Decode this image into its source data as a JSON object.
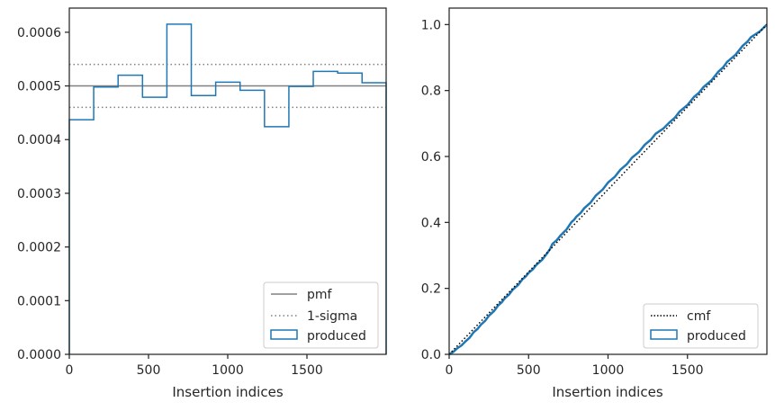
{
  "chart_data": [
    {
      "type": "histogram",
      "xlabel": "Insertion indices",
      "ylabel": "",
      "xlim": [
        0,
        2000
      ],
      "ylim": [
        0,
        0.000645
      ],
      "xticks": [
        0,
        500,
        1000,
        1500
      ],
      "xtick_labels": [
        "0",
        "500",
        "1000",
        "1500"
      ],
      "yticks": [
        0,
        0.0001,
        0.0002,
        0.0003,
        0.0004,
        0.0005,
        0.0006
      ],
      "ytick_labels": [
        "0.0000",
        "0.0001",
        "0.0002",
        "0.0003",
        "0.0004",
        "0.0005",
        "0.0006"
      ],
      "bin_edges": [
        0,
        154,
        308,
        462,
        616,
        770,
        924,
        1078,
        1232,
        1386,
        1540,
        1694,
        1848,
        2000
      ],
      "produced": [
        0.000437,
        0.000498,
        0.00052,
        0.000479,
        0.000615,
        0.000482,
        0.000507,
        0.000492,
        0.000424,
        0.000499,
        0.000527,
        0.000524,
        0.000506
      ],
      "pmf": 0.0005,
      "sigma_lower": 0.00046,
      "sigma_upper": 0.00054,
      "legend_position": "lower right",
      "legend": [
        {
          "label": "pmf",
          "style": "solid",
          "color": "#808080"
        },
        {
          "label": "1-sigma",
          "style": "dotted",
          "color": "#808080"
        },
        {
          "label": "produced",
          "style": "step",
          "color": "#1f77b4"
        }
      ]
    },
    {
      "type": "line",
      "xlabel": "Insertion indices",
      "ylabel": "",
      "xlim": [
        0,
        2000
      ],
      "ylim": [
        0,
        1.05
      ],
      "xticks": [
        0,
        500,
        1000,
        1500
      ],
      "xtick_labels": [
        "0",
        "500",
        "1000",
        "1500"
      ],
      "yticks": [
        0,
        0.2,
        0.4,
        0.6,
        0.8,
        1.0
      ],
      "ytick_labels": [
        "0.0",
        "0.2",
        "0.4",
        "0.6",
        "0.8",
        "1.0"
      ],
      "cmf": {
        "x": [
          0,
          2000
        ],
        "y": [
          0,
          1.0
        ]
      },
      "produced": {
        "x": [
          0,
          50,
          100,
          154,
          200,
          250,
          308,
          350,
          400,
          462,
          500,
          550,
          616,
          650,
          700,
          770,
          800,
          850,
          924,
          1000,
          1078,
          1150,
          1232,
          1300,
          1386,
          1450,
          1540,
          1600,
          1694,
          1750,
          1848,
          1900,
          2000
        ],
        "y": [
          0,
          0.018,
          0.038,
          0.067,
          0.09,
          0.117,
          0.148,
          0.17,
          0.196,
          0.228,
          0.247,
          0.272,
          0.306,
          0.335,
          0.36,
          0.401,
          0.417,
          0.443,
          0.482,
          0.521,
          0.56,
          0.596,
          0.636,
          0.669,
          0.703,
          0.736,
          0.78,
          0.81,
          0.857,
          0.887,
          0.936,
          0.962,
          1.0
        ]
      },
      "legend_position": "lower right",
      "legend": [
        {
          "label": "cmf",
          "style": "dotted",
          "color": "#000000"
        },
        {
          "label": "produced",
          "style": "step",
          "color": "#1f77b4"
        }
      ]
    }
  ]
}
